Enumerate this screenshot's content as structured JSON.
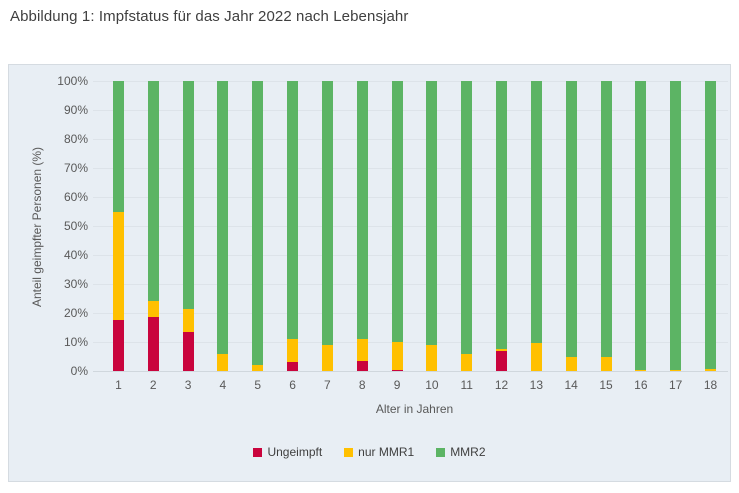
{
  "page": {
    "title": "Abbildung 1: Impfstatus für das Jahr 2022 nach Lebensjahr"
  },
  "theme": {
    "panel_bg": "#e8eef4",
    "gridline_color": "#dde3e9",
    "title_color": "#3f3f3f",
    "axis_text_color": "#595959"
  },
  "chart_data": {
    "type": "bar",
    "stacked": true,
    "percent_stack": true,
    "title": "Abbildung 1: Impfstatus für das Jahr 2022 nach Lebensjahr",
    "xlabel": "Alter in Jahren",
    "ylabel": "Anteil geimpfter Personen (%)",
    "ylim": [
      0,
      100
    ],
    "ytick_step": 10,
    "yticks": [
      "0%",
      "10%",
      "20%",
      "30%",
      "40%",
      "50%",
      "60%",
      "70%",
      "80%",
      "90%",
      "100%"
    ],
    "grid": true,
    "legend_position": "bottom",
    "categories": [
      "1",
      "2",
      "3",
      "4",
      "5",
      "6",
      "7",
      "8",
      "9",
      "10",
      "11",
      "12",
      "13",
      "14",
      "15",
      "16",
      "17",
      "18"
    ],
    "series": [
      {
        "name": "Ungeimpft",
        "color": "#c9043d",
        "values": [
          17.5,
          18.5,
          13.5,
          0,
          0,
          3,
          0,
          3.5,
          0.5,
          0,
          0,
          7,
          0,
          0,
          0,
          0,
          0,
          0
        ]
      },
      {
        "name": "nur MMR1",
        "color": "#ffc000",
        "values": [
          37.5,
          5.5,
          8,
          6,
          2,
          8,
          9,
          7.5,
          9.5,
          9,
          6,
          0.7,
          9.5,
          5,
          5,
          0.3,
          0.5,
          0.7
        ]
      },
      {
        "name": "MMR2",
        "color": "#5cb464",
        "values": [
          45,
          76,
          78.5,
          94,
          98,
          89,
          91,
          89,
          90,
          91,
          94,
          92.3,
          90.5,
          95,
          95,
          99.7,
          99.5,
          99.3
        ]
      }
    ]
  }
}
